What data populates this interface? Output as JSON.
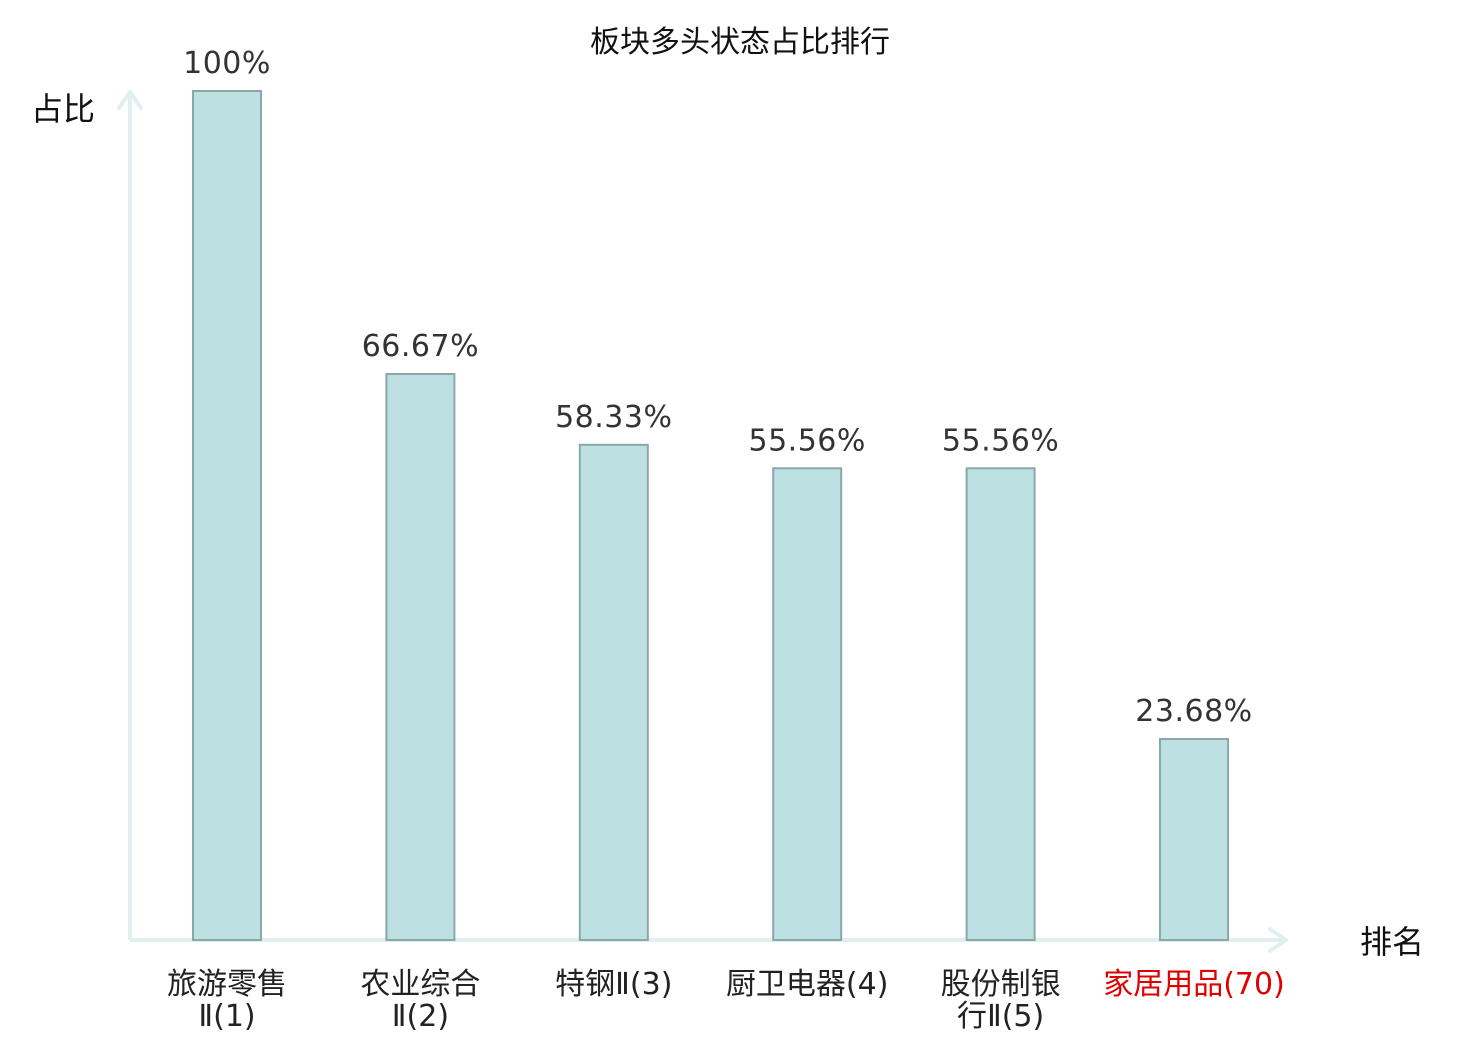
{
  "chart_data": {
    "type": "bar",
    "title": "板块多头状态占比排行",
    "xlabel": "排名",
    "ylabel": "占比",
    "ylim": [
      0,
      100
    ],
    "value_suffix": "%",
    "categories": [
      {
        "lines": [
          "旅游零售",
          "Ⅱ(1)"
        ]
      },
      {
        "lines": [
          "农业综合",
          "Ⅱ(2)"
        ]
      },
      {
        "lines": [
          "特钢Ⅱ(3)"
        ]
      },
      {
        "lines": [
          "厨卫电器(4)"
        ]
      },
      {
        "lines": [
          "股份制银",
          "行Ⅱ(5)"
        ]
      },
      {
        "lines": [
          "家居用品(70)"
        ],
        "highlight": true
      }
    ],
    "values": [
      100,
      66.67,
      58.33,
      55.56,
      55.56,
      23.68
    ],
    "value_labels": [
      "100%",
      "66.67%",
      "58.33%",
      "55.56%",
      "55.56%",
      "23.68%"
    ],
    "colors": {
      "bar_fill": "#bde0e3",
      "bar_stroke": "#8aa7aa",
      "axis": "#dff0ee",
      "highlight_label": "#e00000",
      "label": "#222222"
    },
    "grid": false,
    "legend": "none"
  }
}
